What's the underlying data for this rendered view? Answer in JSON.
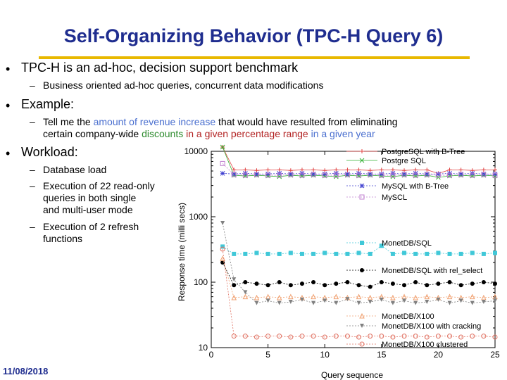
{
  "slide": {
    "title": "Self-Organizing Behavior (TPC-H Query 6)",
    "bullets": {
      "b1": "TPC-H is an ad-hoc, decision support benchmark",
      "b1_sub": "Business oriented ad-hoc queries, concurrent data modifications",
      "b2": "Example:",
      "b2_sub_pre": "Tell me the ",
      "b2_sub_hl1": "amount of revenue increase",
      "b2_sub_mid1": " that would have resulted from eliminating",
      "b2_sub_line2_pre": "certain company-wide ",
      "b2_sub_hl2": "discounts",
      "b2_sub_mid2": " in a given percentage range",
      "b2_sub_mid3": " in a given year",
      "b3": "Workload:",
      "b3_sub1": "Database load",
      "b3_sub2_l1": "Execution of 22 read-only",
      "b3_sub2_l2": "queries in both single",
      "b3_sub2_l3": "and multi-user mode",
      "b3_sub3_l1": "Execution of 2  refresh",
      "b3_sub3_l2": "functions"
    },
    "date": "11/08/2018",
    "colors": {
      "title": "#1f2d8f",
      "rule": "#e8b800",
      "highlight_blue": "#4a6fcf",
      "highlight_green": "#2e8b2e",
      "highlight_red": "#b22222"
    }
  },
  "chart_data": {
    "type": "line",
    "xlabel": "Query sequence",
    "ylabel": "Response time (milli secs)",
    "xlim": [
      0,
      25
    ],
    "ylim": [
      10,
      10000
    ],
    "y_scale": "log",
    "x_ticks": [
      0,
      5,
      10,
      15,
      20,
      25
    ],
    "y_ticks": [
      10,
      100,
      1000,
      10000
    ],
    "legend_position": "right",
    "series": [
      {
        "name": "PostgreSQL with B-Tree",
        "color": "#e04040",
        "marker": "plus",
        "x": [
          1,
          2,
          3,
          4,
          5,
          6,
          7,
          8,
          9,
          10,
          11,
          12,
          13,
          14,
          15,
          16,
          17,
          18,
          19,
          20,
          21,
          22,
          23,
          24,
          25
        ],
        "values": [
          14000,
          5200,
          5200,
          5100,
          5200,
          5200,
          5100,
          5200,
          5200,
          5100,
          5200,
          5200,
          5200,
          5100,
          5200,
          5200,
          5100,
          5200,
          5200,
          4600,
          5200,
          5200,
          5100,
          5200,
          5200
        ]
      },
      {
        "name": "PostgreSQL",
        "color": "#33b033",
        "marker": "x",
        "x": [
          1,
          2,
          3,
          4,
          5,
          6,
          7,
          8,
          9,
          10,
          11,
          12,
          13,
          14,
          15,
          16,
          17,
          18,
          19,
          20,
          21,
          22,
          23,
          24,
          25
        ],
        "values": [
          18000,
          4300,
          4200,
          4300,
          4200,
          4100,
          4300,
          4200,
          4300,
          4200,
          4100,
          4300,
          4200,
          4300,
          4200,
          4100,
          4300,
          4200,
          4300,
          4000,
          4200,
          4300,
          4200,
          4300,
          4200
        ]
      },
      {
        "name": "MySQL with B-Tree",
        "color": "#4040d0",
        "marker": "star",
        "x": [
          1,
          2,
          3,
          4,
          5,
          6,
          7,
          8,
          9,
          10,
          11,
          12,
          13,
          14,
          15,
          16,
          17,
          18,
          19,
          20,
          21,
          22,
          23,
          24,
          25
        ],
        "values": [
          4600,
          4500,
          4600,
          4500,
          4500,
          4600,
          4500,
          4600,
          4500,
          4500,
          4600,
          4500,
          4600,
          4500,
          4500,
          4600,
          4500,
          4600,
          4500,
          4500,
          4600,
          4500,
          4600,
          4500,
          4500
        ]
      },
      {
        "name": "MySCL",
        "color": "#c080d0",
        "marker": "square",
        "x": [
          1,
          2,
          3,
          4,
          5,
          6,
          7,
          8,
          9,
          10,
          11,
          12,
          13,
          14,
          15,
          16,
          17,
          18,
          19,
          20,
          21,
          22,
          23,
          24,
          25
        ],
        "values": [
          6500,
          4400,
          4300,
          4400,
          4300,
          4300,
          4400,
          4300,
          4400,
          4300,
          4300,
          4400,
          4300,
          4400,
          4300,
          4300,
          4400,
          4300,
          4400,
          4300,
          4300,
          4400,
          4300,
          4400,
          4300
        ]
      },
      {
        "name": "MonetDB/SQL",
        "color": "#40c8d8",
        "marker": "filled-square",
        "x": [
          1,
          2,
          3,
          4,
          5,
          6,
          7,
          8,
          9,
          10,
          11,
          12,
          13,
          14,
          15,
          16,
          17,
          18,
          19,
          20,
          21,
          22,
          23,
          24,
          25
        ],
        "values": [
          350,
          270,
          270,
          280,
          270,
          270,
          280,
          270,
          270,
          280,
          270,
          270,
          280,
          270,
          360,
          270,
          280,
          270,
          270,
          280,
          270,
          270,
          280,
          270,
          280
        ]
      },
      {
        "name": "MonetDB/SQL with rel_select",
        "color": "#000000",
        "marker": "filled-circle",
        "x": [
          1,
          2,
          3,
          4,
          5,
          6,
          7,
          8,
          9,
          10,
          11,
          12,
          13,
          14,
          15,
          16,
          17,
          18,
          19,
          20,
          21,
          22,
          23,
          24,
          25
        ],
        "values": [
          200,
          90,
          100,
          95,
          90,
          100,
          90,
          95,
          100,
          90,
          95,
          100,
          90,
          85,
          100,
          95,
          90,
          100,
          90,
          95,
          100,
          90,
          95,
          100,
          95
        ]
      },
      {
        "name": "MonetDB/X100",
        "color": "#f0a070",
        "marker": "triangle-up",
        "x": [
          1,
          2,
          3,
          4,
          5,
          6,
          7,
          8,
          9,
          10,
          11,
          12,
          13,
          14,
          15,
          16,
          17,
          18,
          19,
          20,
          21,
          22,
          23,
          24,
          25
        ],
        "values": [
          230,
          58,
          60,
          58,
          60,
          58,
          60,
          58,
          60,
          58,
          60,
          58,
          60,
          58,
          60,
          58,
          60,
          58,
          60,
          58,
          60,
          58,
          60,
          58,
          60
        ]
      },
      {
        "name": "MonetDB/X100 with cracking",
        "color": "#808080",
        "marker": "filled-triangle-down",
        "x": [
          1,
          2,
          3,
          4,
          5,
          6,
          7,
          8,
          9,
          10,
          11,
          12,
          13,
          14,
          15,
          16,
          17,
          18,
          19,
          20,
          21,
          22,
          23,
          24,
          25
        ],
        "values": [
          800,
          110,
          70,
          48,
          52,
          48,
          50,
          54,
          48,
          52,
          48,
          55,
          48,
          50,
          54,
          48,
          52,
          48,
          50,
          54,
          48,
          52,
          48,
          50,
          52
        ]
      },
      {
        "name": "MonetDB/X100 clustered",
        "color": "#e07060",
        "marker": "circle",
        "x": [
          1,
          2,
          3,
          4,
          5,
          6,
          7,
          8,
          9,
          10,
          11,
          12,
          13,
          14,
          15,
          16,
          17,
          18,
          19,
          20,
          21,
          22,
          23,
          24,
          25
        ],
        "values": [
          320,
          15,
          15,
          14.5,
          15,
          15,
          14.5,
          15,
          15,
          14.5,
          15,
          15,
          14.5,
          15,
          15,
          14.5,
          15,
          15,
          14.5,
          15,
          15,
          14.5,
          15,
          15,
          14.5
        ]
      }
    ],
    "legend_text": {
      "pg_btree": "PostgreSQL with B-Tree",
      "pg": "Postgre SQL",
      "my_btree": "MySQL with B-Tree",
      "my": "MySCL",
      "mdb_sql": "MonetDB/SQL",
      "mdb_rel": "MonetDB/SQL with rel_select",
      "x100": "MonetDB/X100",
      "x100_crack": "MonetDB/X100 with cracking",
      "x100_clust": "MonetDB/X100 clustered"
    }
  }
}
